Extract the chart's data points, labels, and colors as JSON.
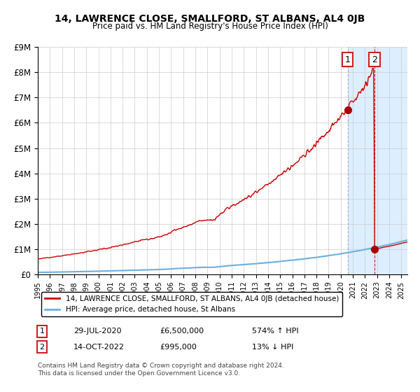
{
  "title": "14, LAWRENCE CLOSE, SMALLFORD, ST ALBANS, AL4 0JB",
  "subtitle": "Price paid vs. HM Land Registry's House Price Index (HPI)",
  "legend_line1": "14, LAWRENCE CLOSE, SMALLFORD, ST ALBANS, AL4 0JB (detached house)",
  "legend_line2": "HPI: Average price, detached house, St Albans",
  "annotation1_label": "1",
  "annotation1_date": "29-JUL-2020",
  "annotation1_price": "£6,500,000",
  "annotation1_hpi": "574% ↑ HPI",
  "annotation2_label": "2",
  "annotation2_date": "14-OCT-2022",
  "annotation2_price": "£995,000",
  "annotation2_hpi": "13% ↓ HPI",
  "footer": "Contains HM Land Registry data © Crown copyright and database right 2024.\nThis data is licensed under the Open Government Licence v3.0.",
  "hpi_color": "#6ab0e0",
  "price_color": "#cc0000",
  "point_color": "#aa0000",
  "highlight_color": "#ddeeff",
  "box_color": "#cc2222",
  "ylim": [
    0,
    9000000
  ],
  "yticks": [
    0,
    1000000,
    2000000,
    3000000,
    4000000,
    5000000,
    6000000,
    7000000,
    8000000,
    9000000
  ],
  "ytick_labels": [
    "£0",
    "£1M",
    "£2M",
    "£3M",
    "£4M",
    "£5M",
    "£6M",
    "£7M",
    "£8M",
    "£9M"
  ],
  "year_start": 1995,
  "year_end": 2025,
  "sale1_year": 2020.57,
  "sale1_value": 6500000,
  "sale2_year": 2022.79,
  "sale2_value": 995000
}
